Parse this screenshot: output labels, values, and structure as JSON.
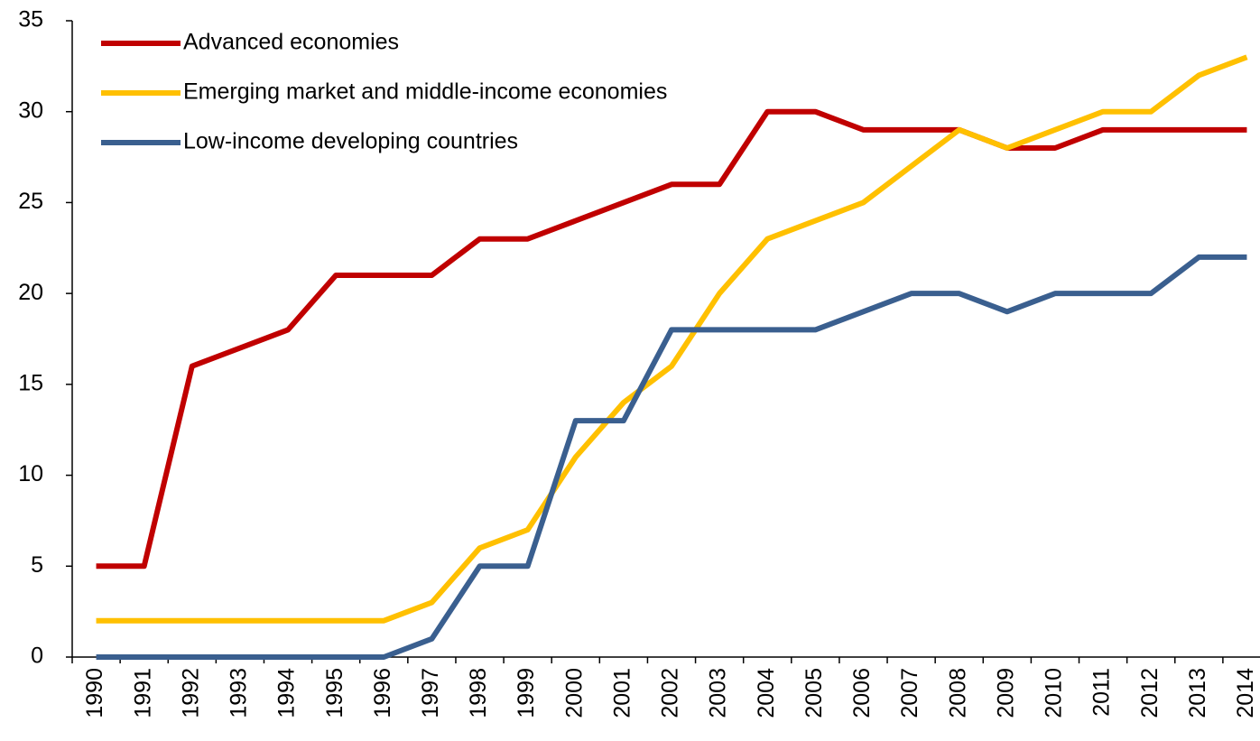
{
  "chart_data": {
    "type": "line",
    "categories": [
      "1990",
      "1991",
      "1992",
      "1993",
      "1994",
      "1995",
      "1996",
      "1997",
      "1998",
      "1999",
      "2000",
      "2001",
      "2002",
      "2003",
      "2004",
      "2005",
      "2006",
      "2007",
      "2008",
      "2009",
      "2010",
      "2011",
      "2012",
      "2013",
      "2014"
    ],
    "series": [
      {
        "name": "Advanced economies",
        "color": "#c00000",
        "values": [
          5,
          5,
          16,
          17,
          18,
          21,
          21,
          21,
          23,
          23,
          24,
          25,
          26,
          26,
          30,
          30,
          29,
          29,
          29,
          28,
          28,
          29,
          29,
          29,
          29
        ]
      },
      {
        "name": "Emerging market and middle-income economies",
        "color": "#ffc000",
        "values": [
          2,
          2,
          2,
          2,
          2,
          2,
          2,
          3,
          6,
          7,
          11,
          14,
          16,
          20,
          23,
          24,
          25,
          27,
          29,
          28,
          29,
          30,
          30,
          32,
          33
        ]
      },
      {
        "name": "Low-income developing countries",
        "color": "#3a5f8f",
        "values": [
          0,
          0,
          0,
          0,
          0,
          0,
          0,
          1,
          5,
          5,
          13,
          13,
          18,
          18,
          18,
          18,
          19,
          20,
          20,
          19,
          20,
          20,
          20,
          22,
          22
        ]
      }
    ],
    "ylim": [
      0,
      35
    ],
    "yticks": [
      0,
      5,
      10,
      15,
      20,
      25,
      30,
      35
    ],
    "grid": false,
    "legend": "upper left"
  }
}
